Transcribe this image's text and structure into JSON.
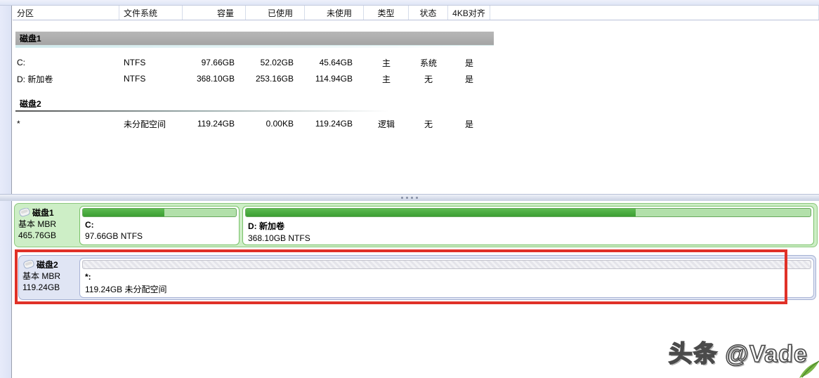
{
  "table": {
    "columns": [
      "分区",
      "文件系统",
      "容量",
      "已使用",
      "未使用",
      "类型",
      "状态",
      "4KB对齐"
    ],
    "groups": [
      {
        "label": "磁盘1",
        "rows": [
          {
            "partition": "C:",
            "fs": "NTFS",
            "capacity": "97.66GB",
            "used": "52.02GB",
            "free": "45.64GB",
            "type": "主",
            "status": "系统",
            "aligned": "是"
          },
          {
            "partition": "D: 新加卷",
            "fs": "NTFS",
            "capacity": "368.10GB",
            "used": "253.16GB",
            "free": "114.94GB",
            "type": "主",
            "status": "无",
            "aligned": "是"
          }
        ]
      },
      {
        "label": "磁盘2",
        "rows": [
          {
            "partition": "*",
            "fs": "未分配空间",
            "capacity": "119.24GB",
            "used": "0.00KB",
            "free": "119.24GB",
            "type": "逻辑",
            "status": "无",
            "aligned": "是"
          }
        ]
      }
    ]
  },
  "disks": [
    {
      "name": "磁盘1",
      "scheme": "基本 MBR",
      "size": "465.76GB",
      "partitions": [
        {
          "title": "C:",
          "subtitle": "97.66GB NTFS",
          "used_pct": 53
        },
        {
          "title": "D: 新加卷",
          "subtitle": "368.10GB NTFS",
          "used_pct": 69
        }
      ]
    },
    {
      "name": "磁盘2",
      "scheme": "基本 MBR",
      "size": "119.24GB",
      "partitions": [
        {
          "title": "*:",
          "subtitle": "119.24GB 未分配空间",
          "used_pct": 0
        }
      ]
    }
  ],
  "annotation": {
    "highlight_color": "#e03128",
    "target": "磁盘2"
  },
  "watermark": "头条 @Vade",
  "colors": {
    "disk1_panel": "#cdeec6",
    "disk1_border": "#8cc87d",
    "usage_fill": "#3b9e33",
    "usage_empty": "#b2e0aa",
    "disk2_panel": "#e0e5f4",
    "disk2_border": "#a4b0d2",
    "group_bar": "#ababab",
    "red_annotation": "#e03128"
  }
}
